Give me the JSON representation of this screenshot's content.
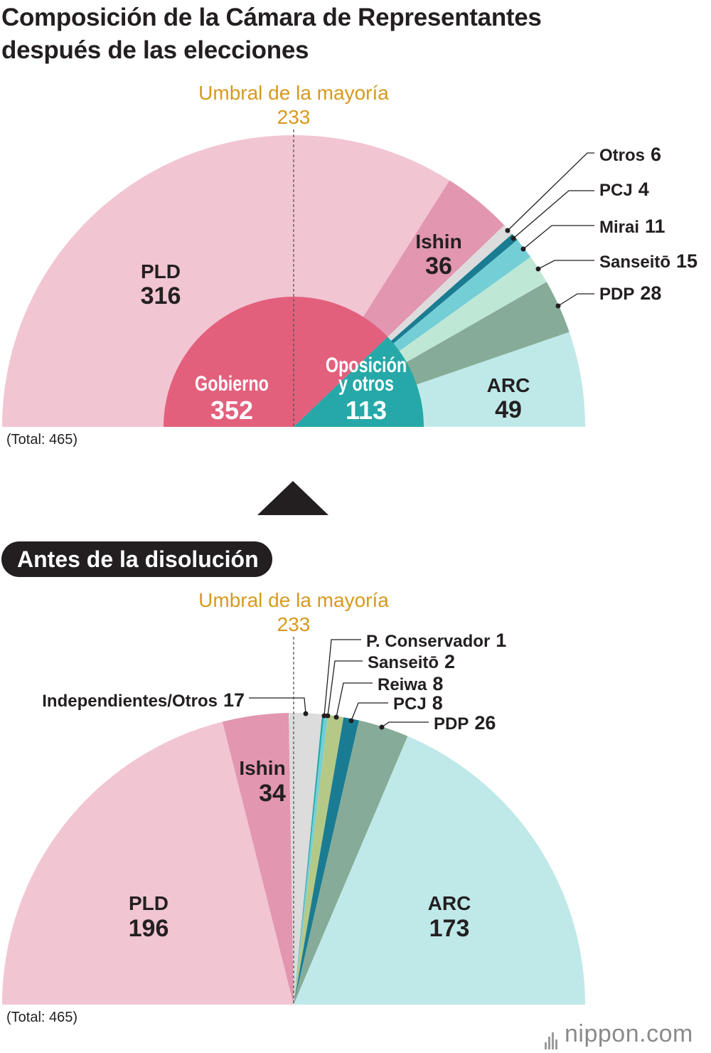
{
  "title": {
    "line1": "Composición de la Cámara de Representantes",
    "line2": "después de las elecciones"
  },
  "threshold": {
    "label": "Umbral de la mayoría",
    "value": "233",
    "color": "#d79a1e"
  },
  "subtitle_before": "Antes de la disolución",
  "total_label": "(Total: 465)",
  "brand": {
    "name": "nippon",
    "dot": ".",
    "tld": "com"
  },
  "chart_data": [
    {
      "type": "pie",
      "title": "Composición de la Cámara de Representantes después de las elecciones",
      "total": 465,
      "majority_threshold": 233,
      "outer_series": [
        {
          "name": "PLD",
          "value": 316,
          "color": "#f2c5d3"
        },
        {
          "name": "Ishin",
          "value": 36,
          "color": "#e296b0"
        },
        {
          "name": "Otros",
          "value": 6,
          "color": "#dcdcdc"
        },
        {
          "name": "PCJ",
          "value": 4,
          "color": "#1a7c92"
        },
        {
          "name": "Mirai",
          "value": 11,
          "color": "#74ced5"
        },
        {
          "name": "Sanseitō",
          "value": 15,
          "color": "#bfe7d6"
        },
        {
          "name": "PDP",
          "value": 28,
          "color": "#86ab98"
        },
        {
          "name": "ARC",
          "value": 49,
          "color": "#bfe9e8"
        }
      ],
      "inner_series": [
        {
          "name": "Gobierno",
          "value": 352,
          "color": "#e3607d"
        },
        {
          "name": "Oposición y otros",
          "value": 113,
          "color": "#26a8a8"
        }
      ],
      "inner_labels": {
        "gov_line1": "Gobierno",
        "opp_line1": "Oposición",
        "opp_line2": "y otros"
      }
    },
    {
      "type": "pie",
      "title": "Antes de la disolución",
      "total": 465,
      "majority_threshold": 233,
      "outer_series": [
        {
          "name": "PLD",
          "value": 196,
          "color": "#f2c5d3"
        },
        {
          "name": "Ishin",
          "value": 34,
          "color": "#e296b0"
        },
        {
          "name": "Independientes/Otros",
          "value": 17,
          "color": "#dcdcdc"
        },
        {
          "name": "P. Conservador",
          "value": 1,
          "color": "#26a8a8"
        },
        {
          "name": "Sanseitō",
          "value": 2,
          "color": "#74ced5"
        },
        {
          "name": "Reiwa",
          "value": 8,
          "color": "#b5c987"
        },
        {
          "name": "PCJ",
          "value": 8,
          "color": "#1a7c92"
        },
        {
          "name": "PDP",
          "value": 26,
          "color": "#86ab98"
        },
        {
          "name": "ARC",
          "value": 173,
          "color": "#bfe9e8"
        }
      ]
    }
  ]
}
